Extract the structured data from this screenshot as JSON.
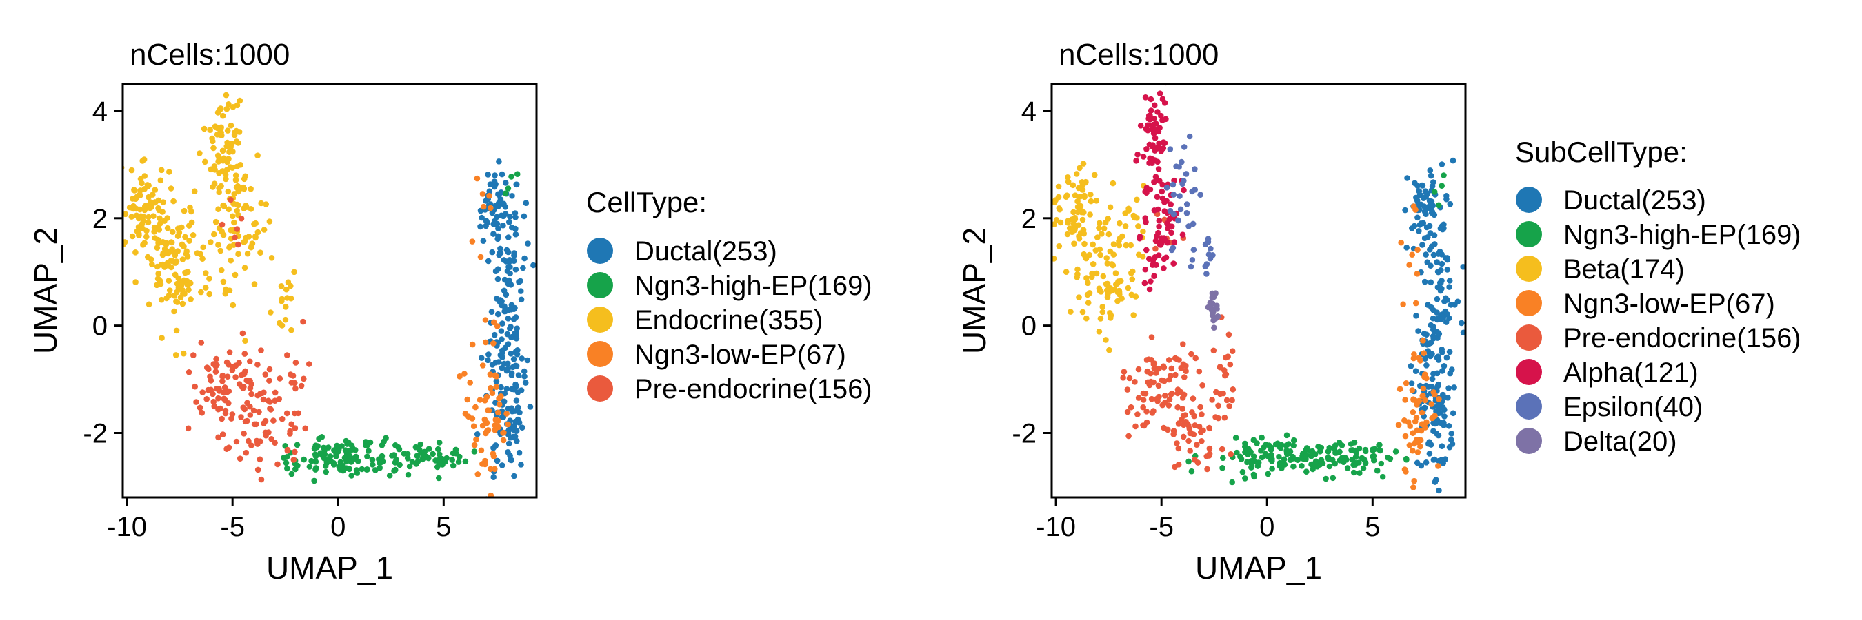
{
  "figure": {
    "description_free": true
  },
  "chart_data": [
    {
      "type": "scatter",
      "title": "nCells:1000",
      "xlabel": "UMAP_1",
      "ylabel": "UMAP_2",
      "xlim": [
        -10.2,
        9.4
      ],
      "ylim": [
        -3.2,
        4.5
      ],
      "xticks": [
        -10,
        -5,
        0,
        5
      ],
      "yticks": [
        -2,
        0,
        2,
        4
      ],
      "legend_title": "CellType:",
      "legend_position": "right",
      "grid": false,
      "series": [
        {
          "name": "Ductal",
          "label": "Ductal(253)",
          "count": 253,
          "color": "#1F77B4",
          "clusters": [
            {
              "cx": 7.4,
              "cy": 2.2,
              "sx": 0.45,
              "sy": 0.35,
              "n": 50
            },
            {
              "cx": 8.2,
              "cy": 1.0,
              "sx": 0.45,
              "sy": 0.8,
              "n": 70
            },
            {
              "cx": 7.9,
              "cy": -0.6,
              "sx": 0.5,
              "sy": 0.7,
              "n": 70
            },
            {
              "cx": 8.0,
              "cy": -1.8,
              "sx": 0.5,
              "sy": 0.5,
              "n": 63
            }
          ]
        },
        {
          "name": "Ngn3-high-EP",
          "label": "Ngn3-high-EP(169)",
          "count": 169,
          "color": "#16A34A",
          "clusters": [
            {
              "cx": 0.3,
              "cy": -2.45,
              "sx": 1.6,
              "sy": 0.17,
              "n": 110
            },
            {
              "cx": 4.3,
              "cy": -2.45,
              "sx": 1.0,
              "sy": 0.15,
              "n": 55
            },
            {
              "cx": 8.0,
              "cy": 2.5,
              "sx": 0.25,
              "sy": 0.2,
              "n": 4
            }
          ]
        },
        {
          "name": "Endocrine",
          "label": "Endocrine(355)",
          "count": 355,
          "color": "#F5BE1E",
          "clusters": [
            {
              "cx": -9.2,
              "cy": 2.2,
              "sx": 0.55,
              "sy": 0.4,
              "n": 80
            },
            {
              "cx": -7.7,
              "cy": 1.1,
              "sx": 0.75,
              "sy": 0.55,
              "n": 110
            },
            {
              "cx": -5.4,
              "cy": 3.4,
              "sx": 0.45,
              "sy": 0.55,
              "n": 70
            },
            {
              "cx": -4.6,
              "cy": 1.9,
              "sx": 0.75,
              "sy": 0.65,
              "n": 80
            },
            {
              "cx": -2.4,
              "cy": 0.4,
              "sx": 0.25,
              "sy": 0.35,
              "n": 15
            }
          ]
        },
        {
          "name": "Ngn3-low-EP",
          "label": "Ngn3-low-EP(67)",
          "count": 67,
          "color": "#F98125",
          "clusters": [
            {
              "cx": 7.1,
              "cy": -1.8,
              "sx": 0.45,
              "sy": 0.55,
              "n": 55
            },
            {
              "cx": 6.9,
              "cy": 1.4,
              "sx": 0.3,
              "sy": 1.0,
              "n": 12
            }
          ]
        },
        {
          "name": "Pre-endocrine",
          "label": "Pre-endocrine(156)",
          "count": 156,
          "color": "#EA5A3D",
          "clusters": [
            {
              "cx": -5.0,
              "cy": -1.1,
              "sx": 0.9,
              "sy": 0.5,
              "n": 85
            },
            {
              "cx": -3.4,
              "cy": -1.9,
              "sx": 0.8,
              "sy": 0.4,
              "n": 50
            },
            {
              "cx": -2.0,
              "cy": -1.0,
              "sx": 0.35,
              "sy": 0.5,
              "n": 15
            },
            {
              "cx": -5.0,
              "cy": 1.8,
              "sx": 0.35,
              "sy": 0.35,
              "n": 6
            }
          ]
        }
      ]
    },
    {
      "type": "scatter",
      "title": "nCells:1000",
      "xlabel": "UMAP_1",
      "ylabel": "UMAP_2",
      "xlim": [
        -10.2,
        9.4
      ],
      "ylim": [
        -3.2,
        4.5
      ],
      "xticks": [
        -10,
        -5,
        0,
        5
      ],
      "yticks": [
        -2,
        0,
        2,
        4
      ],
      "legend_title": "SubCellType:",
      "legend_position": "right",
      "grid": false,
      "series": [
        {
          "name": "Ductal",
          "label": "Ductal(253)",
          "count": 253,
          "color": "#1F77B4",
          "clusters": [
            {
              "cx": 7.4,
              "cy": 2.2,
              "sx": 0.45,
              "sy": 0.35,
              "n": 50
            },
            {
              "cx": 8.2,
              "cy": 1.0,
              "sx": 0.45,
              "sy": 0.8,
              "n": 70
            },
            {
              "cx": 7.9,
              "cy": -0.6,
              "sx": 0.5,
              "sy": 0.7,
              "n": 70
            },
            {
              "cx": 8.0,
              "cy": -1.8,
              "sx": 0.5,
              "sy": 0.5,
              "n": 63
            }
          ]
        },
        {
          "name": "Ngn3-high-EP",
          "label": "Ngn3-high-EP(169)",
          "count": 169,
          "color": "#16A34A",
          "clusters": [
            {
              "cx": 0.3,
              "cy": -2.45,
              "sx": 1.6,
              "sy": 0.17,
              "n": 110
            },
            {
              "cx": 4.3,
              "cy": -2.45,
              "sx": 1.0,
              "sy": 0.15,
              "n": 55
            },
            {
              "cx": 8.0,
              "cy": 2.5,
              "sx": 0.25,
              "sy": 0.2,
              "n": 4
            }
          ]
        },
        {
          "name": "Beta",
          "label": "Beta(174)",
          "count": 174,
          "color": "#F5BE1E",
          "clusters": [
            {
              "cx": -9.2,
              "cy": 2.2,
              "sx": 0.55,
              "sy": 0.4,
              "n": 70
            },
            {
              "cx": -7.5,
              "cy": 1.0,
              "sx": 0.7,
              "sy": 0.55,
              "n": 96
            },
            {
              "cx": -6.3,
              "cy": 2.0,
              "sx": 0.3,
              "sy": 0.4,
              "n": 8
            }
          ]
        },
        {
          "name": "Ngn3-low-EP",
          "label": "Ngn3-low-EP(67)",
          "count": 67,
          "color": "#F98125",
          "clusters": [
            {
              "cx": 7.1,
              "cy": -1.8,
              "sx": 0.45,
              "sy": 0.55,
              "n": 55
            },
            {
              "cx": 6.9,
              "cy": 1.4,
              "sx": 0.3,
              "sy": 1.0,
              "n": 12
            }
          ]
        },
        {
          "name": "Pre-endocrine",
          "label": "Pre-endocrine(156)",
          "count": 156,
          "color": "#EA5A3D",
          "clusters": [
            {
              "cx": -5.0,
              "cy": -1.1,
              "sx": 0.9,
              "sy": 0.5,
              "n": 85
            },
            {
              "cx": -3.4,
              "cy": -1.9,
              "sx": 0.8,
              "sy": 0.4,
              "n": 50
            },
            {
              "cx": -2.0,
              "cy": -1.0,
              "sx": 0.35,
              "sy": 0.5,
              "n": 15
            },
            {
              "cx": -5.0,
              "cy": 1.8,
              "sx": 0.35,
              "sy": 0.35,
              "n": 6
            }
          ]
        },
        {
          "name": "Alpha",
          "label": "Alpha(121)",
          "count": 121,
          "color": "#D6134B",
          "clusters": [
            {
              "cx": -5.3,
              "cy": 3.4,
              "sx": 0.35,
              "sy": 0.5,
              "n": 60
            },
            {
              "cx": -5.0,
              "cy": 1.8,
              "sx": 0.45,
              "sy": 0.6,
              "n": 61
            }
          ]
        },
        {
          "name": "Epsilon",
          "label": "Epsilon(40)",
          "count": 40,
          "color": "#5B72B8",
          "clusters": [
            {
              "cx": -3.9,
              "cy": 2.4,
              "sx": 0.4,
              "sy": 0.55,
              "n": 30
            },
            {
              "cx": -2.9,
              "cy": 1.3,
              "sx": 0.2,
              "sy": 0.25,
              "n": 10
            }
          ]
        },
        {
          "name": "Delta",
          "label": "Delta(20)",
          "count": 20,
          "color": "#7E72A6",
          "clusters": [
            {
              "cx": -2.5,
              "cy": 0.35,
              "sx": 0.15,
              "sy": 0.25,
              "n": 20
            }
          ]
        }
      ]
    }
  ]
}
